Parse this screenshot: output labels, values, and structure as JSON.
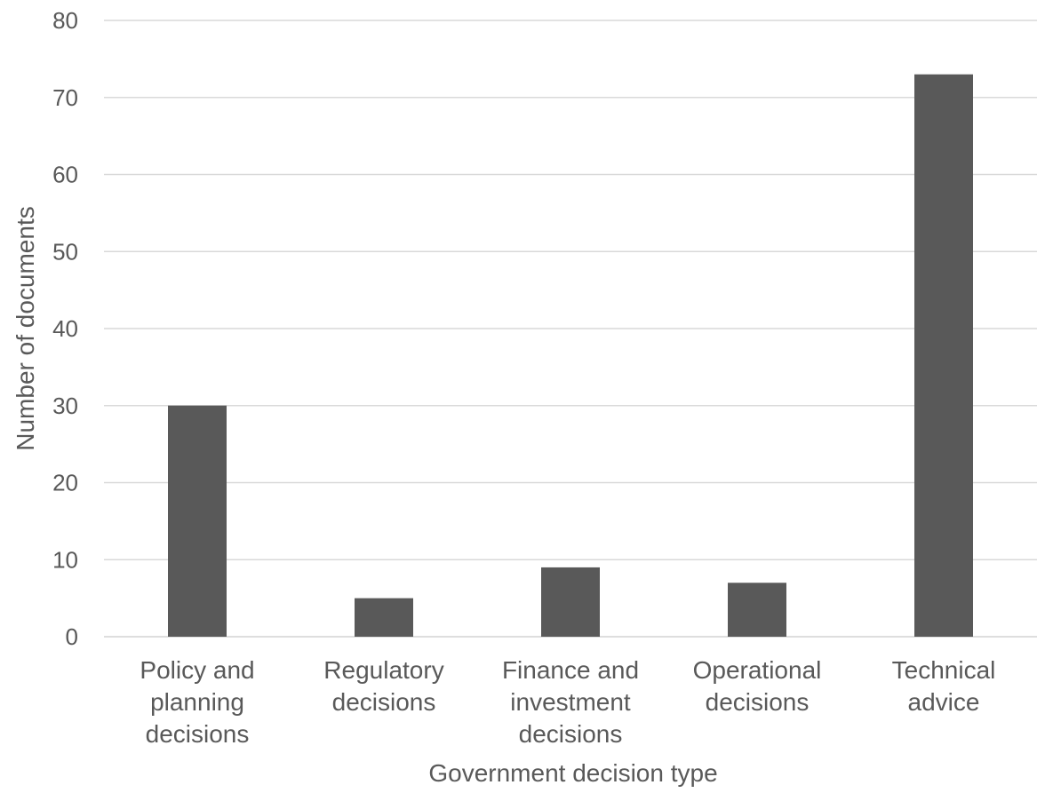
{
  "chart_data": {
    "type": "bar",
    "categories": [
      [
        "Policy and",
        "planning",
        "decisions"
      ],
      [
        "Regulatory",
        "decisions"
      ],
      [
        "Finance and",
        "investment",
        "decisions"
      ],
      [
        "Operational",
        "decisions"
      ],
      [
        "Technical",
        "advice"
      ]
    ],
    "values": [
      30,
      5,
      9,
      7,
      73
    ],
    "xlabel": "Government decision type",
    "ylabel": "Number of documents",
    "ylim": [
      0,
      80
    ],
    "yticks": [
      0,
      10,
      20,
      30,
      40,
      50,
      60,
      70,
      80
    ],
    "grid": true,
    "legend": "none",
    "colors": {
      "bar": "#595959",
      "grid": "#d9d9d9",
      "text": "#595959"
    }
  }
}
